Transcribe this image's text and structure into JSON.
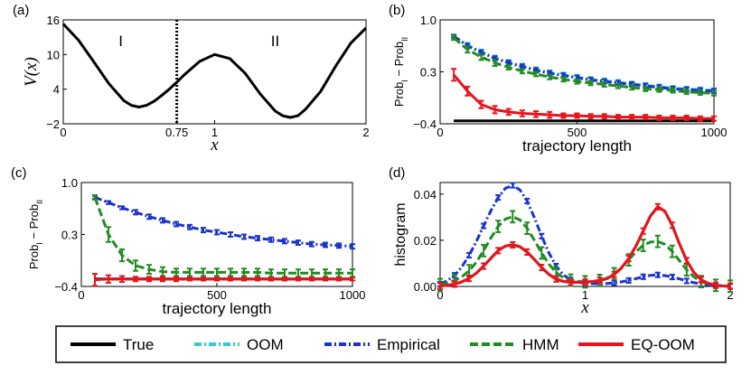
{
  "chart_data": [
    {
      "id": "a",
      "type": "line",
      "panel_label": "(a)",
      "xlabel": "x",
      "ylabel": "V(x)",
      "xlim": [
        0,
        2
      ],
      "ylim": [
        -2,
        16
      ],
      "xticks": [
        {
          "v": 0,
          "label": "0"
        },
        {
          "v": 0.75,
          "label": "0.75"
        },
        {
          "v": 1,
          "label": "1"
        },
        {
          "v": 2,
          "label": "2"
        }
      ],
      "yticks": [
        {
          "v": -2,
          "label": "−2"
        },
        {
          "v": 4,
          "label": "4"
        },
        {
          "v": 10,
          "label": "10"
        },
        {
          "v": 16,
          "label": "16"
        }
      ],
      "divider_x": 0.75,
      "region_labels": [
        {
          "text": "I",
          "x": 0.38,
          "y": 11.5
        },
        {
          "text": "II",
          "x": 1.4,
          "y": 11.5
        }
      ],
      "series": [
        {
          "name": "potential",
          "color": "#000000",
          "x": [
            0,
            0.1,
            0.2,
            0.3,
            0.4,
            0.45,
            0.5,
            0.55,
            0.6,
            0.65,
            0.7,
            0.75,
            0.8,
            0.9,
            1.0,
            1.1,
            1.2,
            1.3,
            1.4,
            1.45,
            1.5,
            1.55,
            1.6,
            1.7,
            1.8,
            1.9,
            2.0
          ],
          "y": [
            15.3,
            12.5,
            8.8,
            5.0,
            2.0,
            1.2,
            0.9,
            1.2,
            1.9,
            2.9,
            4.0,
            5.2,
            6.5,
            8.8,
            10.0,
            9.3,
            6.8,
            3.2,
            0.2,
            -0.6,
            -0.9,
            -0.6,
            0.5,
            3.6,
            8.0,
            12.0,
            14.6
          ]
        }
      ]
    },
    {
      "id": "b",
      "type": "line",
      "panel_label": "(b)",
      "xlabel": "trajectory length",
      "ylabel_main": "Prob",
      "ylabel_sub1": "I",
      "ylabel_sub2": "II",
      "ylabel_sep": " − ",
      "xlim": [
        0,
        1000
      ],
      "ylim": [
        -0.4,
        1.0
      ],
      "xticks": [
        {
          "v": 0,
          "label": "0"
        },
        {
          "v": 500,
          "label": "500"
        },
        {
          "v": 1000,
          "label": "1000"
        }
      ],
      "yticks": [
        {
          "v": -0.4,
          "label": "−0.4"
        },
        {
          "v": 0.3,
          "label": "0.3"
        },
        {
          "v": 1.0,
          "label": "1.0"
        }
      ],
      "x": [
        50,
        100,
        150,
        200,
        250,
        300,
        350,
        400,
        450,
        500,
        550,
        600,
        650,
        700,
        750,
        800,
        850,
        900,
        950,
        1000
      ],
      "series": [
        {
          "name": "True",
          "color": "#000000",
          "style": "solid",
          "values": [
            -0.36,
            -0.36,
            -0.36,
            -0.36,
            -0.36,
            -0.36,
            -0.36,
            -0.36,
            -0.36,
            -0.36,
            -0.36,
            -0.36,
            -0.36,
            -0.36,
            -0.36,
            -0.36,
            -0.36,
            -0.36,
            -0.36,
            -0.36
          ]
        },
        {
          "name": "OOM",
          "color": "#33cccc",
          "style": "dashdot",
          "values": [
            0.78,
            0.66,
            0.57,
            0.49,
            0.43,
            0.38,
            0.33,
            0.29,
            0.26,
            0.23,
            0.2,
            0.18,
            0.16,
            0.14,
            0.12,
            0.1,
            0.08,
            0.07,
            0.06,
            0.05
          ],
          "err": [
            0.02,
            0.03,
            0.03,
            0.03,
            0.03,
            0.03,
            0.03,
            0.03,
            0.03,
            0.03,
            0.03,
            0.03,
            0.03,
            0.03,
            0.03,
            0.03,
            0.03,
            0.03,
            0.03,
            0.03
          ]
        },
        {
          "name": "Empirical",
          "color": "#1a33cc",
          "style": "dashdot",
          "values": [
            0.78,
            0.65,
            0.56,
            0.48,
            0.42,
            0.37,
            0.32,
            0.28,
            0.25,
            0.22,
            0.19,
            0.17,
            0.15,
            0.13,
            0.11,
            0.09,
            0.07,
            0.06,
            0.05,
            0.04
          ],
          "err": [
            0.02,
            0.03,
            0.03,
            0.03,
            0.03,
            0.03,
            0.03,
            0.03,
            0.03,
            0.03,
            0.03,
            0.03,
            0.03,
            0.03,
            0.03,
            0.03,
            0.03,
            0.03,
            0.03,
            0.03
          ]
        },
        {
          "name": "HMM",
          "color": "#228b22",
          "style": "dashed",
          "values": [
            0.76,
            0.6,
            0.5,
            0.42,
            0.36,
            0.31,
            0.27,
            0.23,
            0.2,
            0.17,
            0.15,
            0.13,
            0.11,
            0.09,
            0.07,
            0.06,
            0.05,
            0.03,
            0.02,
            0.01
          ],
          "err": [
            0.03,
            0.04,
            0.04,
            0.04,
            0.03,
            0.03,
            0.03,
            0.03,
            0.03,
            0.03,
            0.03,
            0.03,
            0.03,
            0.03,
            0.03,
            0.03,
            0.03,
            0.03,
            0.03,
            0.03
          ]
        },
        {
          "name": "EQ-OOM",
          "color": "#e8141b",
          "style": "solid",
          "values": [
            0.26,
            0.04,
            -0.14,
            -0.21,
            -0.24,
            -0.26,
            -0.27,
            -0.28,
            -0.29,
            -0.29,
            -0.3,
            -0.3,
            -0.31,
            -0.31,
            -0.31,
            -0.32,
            -0.32,
            -0.32,
            -0.33,
            -0.33
          ],
          "err": [
            0.08,
            0.06,
            0.05,
            0.05,
            0.04,
            0.04,
            0.04,
            0.04,
            0.03,
            0.03,
            0.03,
            0.03,
            0.03,
            0.03,
            0.03,
            0.03,
            0.03,
            0.03,
            0.03,
            0.03
          ]
        }
      ]
    },
    {
      "id": "c",
      "type": "line",
      "panel_label": "(c)",
      "xlabel": "trajectory length",
      "ylabel_main": "Prob",
      "ylabel_sub1": "I",
      "ylabel_sub2": "II",
      "ylabel_sep": " − ",
      "xlim": [
        0,
        1000
      ],
      "ylim": [
        -0.4,
        1.0
      ],
      "xticks": [
        {
          "v": 0,
          "label": "0"
        },
        {
          "v": 500,
          "label": "500"
        },
        {
          "v": 1000,
          "label": "1000"
        }
      ],
      "yticks": [
        {
          "v": -0.4,
          "label": "−0.4"
        },
        {
          "v": 0.3,
          "label": "0.3"
        },
        {
          "v": 1.0,
          "label": "1.0"
        }
      ],
      "x": [
        50,
        100,
        150,
        200,
        250,
        300,
        350,
        400,
        450,
        500,
        550,
        600,
        650,
        700,
        750,
        800,
        850,
        900,
        950,
        1000
      ],
      "series": [
        {
          "name": "True",
          "color": "#000000",
          "style": "solid",
          "values": [
            -0.3,
            -0.3,
            -0.3,
            -0.3,
            -0.3,
            -0.3,
            -0.3,
            -0.3,
            -0.3,
            -0.3,
            -0.3,
            -0.3,
            -0.3,
            -0.3,
            -0.3,
            -0.3,
            -0.3,
            -0.3,
            -0.3,
            -0.3
          ]
        },
        {
          "name": "Empirical",
          "color": "#1a33cc",
          "style": "dashdot",
          "values": [
            0.8,
            0.73,
            0.66,
            0.6,
            0.54,
            0.49,
            0.44,
            0.4,
            0.36,
            0.33,
            0.3,
            0.27,
            0.25,
            0.23,
            0.21,
            0.19,
            0.17,
            0.16,
            0.15,
            0.14
          ],
          "err": [
            0.02,
            0.02,
            0.02,
            0.03,
            0.03,
            0.03,
            0.03,
            0.03,
            0.03,
            0.03,
            0.03,
            0.03,
            0.03,
            0.03,
            0.03,
            0.03,
            0.03,
            0.03,
            0.03,
            0.03
          ]
        },
        {
          "name": "HMM",
          "color": "#228b22",
          "style": "dashed",
          "values": [
            0.8,
            0.3,
            0.02,
            -0.12,
            -0.17,
            -0.2,
            -0.21,
            -0.21,
            -0.21,
            -0.21,
            -0.21,
            -0.21,
            -0.21,
            -0.22,
            -0.22,
            -0.22,
            -0.22,
            -0.22,
            -0.22,
            -0.22
          ],
          "err": [
            0.03,
            0.1,
            0.08,
            0.07,
            0.06,
            0.06,
            0.05,
            0.05,
            0.05,
            0.05,
            0.05,
            0.05,
            0.05,
            0.05,
            0.05,
            0.05,
            0.05,
            0.05,
            0.05,
            0.05
          ]
        },
        {
          "name": "EQ-OOM",
          "color": "#e8141b",
          "style": "solid",
          "values": [
            -0.31,
            -0.3,
            -0.3,
            -0.3,
            -0.3,
            -0.3,
            -0.3,
            -0.3,
            -0.3,
            -0.3,
            -0.3,
            -0.3,
            -0.3,
            -0.3,
            -0.3,
            -0.3,
            -0.3,
            -0.3,
            -0.3,
            -0.3
          ],
          "err": [
            0.08,
            0.05,
            0.04,
            0.03,
            0.03,
            0.03,
            0.03,
            0.02,
            0.02,
            0.02,
            0.02,
            0.02,
            0.02,
            0.02,
            0.02,
            0.02,
            0.02,
            0.02,
            0.02,
            0.02
          ]
        }
      ]
    },
    {
      "id": "d",
      "type": "line",
      "panel_label": "(d)",
      "xlabel": "x",
      "ylabel": "histogram",
      "xlim": [
        0,
        2
      ],
      "ylim": [
        0,
        0.045
      ],
      "xticks": [
        {
          "v": 0,
          "label": "0"
        },
        {
          "v": 1,
          "label": "1"
        },
        {
          "v": 2,
          "label": "2"
        }
      ],
      "yticks": [
        {
          "v": 0,
          "label": "0.00"
        },
        {
          "v": 0.02,
          "label": "0.02"
        },
        {
          "v": 0.04,
          "label": "0.04"
        }
      ],
      "x": [
        0,
        0.05,
        0.1,
        0.15,
        0.2,
        0.25,
        0.3,
        0.35,
        0.4,
        0.45,
        0.5,
        0.55,
        0.6,
        0.65,
        0.7,
        0.75,
        0.8,
        0.85,
        0.9,
        0.95,
        1.0,
        1.05,
        1.1,
        1.15,
        1.2,
        1.25,
        1.3,
        1.35,
        1.4,
        1.45,
        1.5,
        1.55,
        1.6,
        1.65,
        1.7,
        1.75,
        1.8,
        1.85,
        1.9,
        1.95,
        2.0
      ],
      "series": [
        {
          "name": "True",
          "color": "#000000",
          "style": "solid",
          "values": [
            0.0002,
            0.0005,
            0.001,
            0.002,
            0.0035,
            0.0058,
            0.0088,
            0.0122,
            0.0155,
            0.0175,
            0.018,
            0.0172,
            0.0149,
            0.0117,
            0.0082,
            0.0052,
            0.0032,
            0.0022,
            0.0018,
            0.0018,
            0.0019,
            0.0021,
            0.0026,
            0.0034,
            0.0052,
            0.008,
            0.0121,
            0.0175,
            0.024,
            0.0305,
            0.0345,
            0.0325,
            0.0265,
            0.0185,
            0.0112,
            0.006,
            0.0029,
            0.0013,
            0.0005,
            0.0002,
            0.0001
          ]
        },
        {
          "name": "Empirical",
          "color": "#1a33cc",
          "style": "dashdot",
          "values": [
            0.001,
            0.0025,
            0.0048,
            0.0085,
            0.0135,
            0.0195,
            0.0262,
            0.0328,
            0.0385,
            0.0425,
            0.0438,
            0.0418,
            0.037,
            0.0298,
            0.0218,
            0.0145,
            0.0088,
            0.005,
            0.0028,
            0.0018,
            0.0014,
            0.0012,
            0.0012,
            0.0013,
            0.0016,
            0.002,
            0.0026,
            0.0034,
            0.0042,
            0.0048,
            0.005,
            0.0047,
            0.0041,
            0.0033,
            0.0024,
            0.0016,
            0.001,
            0.0006,
            0.0004,
            0.0002,
            0.0001
          ],
          "err_every": 2,
          "err": 0.001
        },
        {
          "name": "HMM",
          "color": "#228b22",
          "style": "dashed",
          "values": [
            0.0008,
            0.0015,
            0.0025,
            0.0042,
            0.0068,
            0.0105,
            0.0155,
            0.021,
            0.026,
            0.0292,
            0.0302,
            0.0288,
            0.0252,
            0.02,
            0.0145,
            0.0097,
            0.006,
            0.0038,
            0.0027,
            0.0022,
            0.002,
            0.0021,
            0.0026,
            0.0036,
            0.0055,
            0.0082,
            0.0115,
            0.015,
            0.0178,
            0.0192,
            0.0195,
            0.0182,
            0.0152,
            0.0112,
            0.0072,
            0.0041,
            0.0021,
            0.001,
            0.0005,
            0.0002,
            0.0001
          ],
          "err_every": 2,
          "err": 0.0025
        },
        {
          "name": "EQ-OOM",
          "color": "#e8141b",
          "style": "solid",
          "values": [
            0.0002,
            0.0005,
            0.001,
            0.002,
            0.0035,
            0.0058,
            0.0088,
            0.0122,
            0.0155,
            0.0175,
            0.018,
            0.0172,
            0.0149,
            0.0117,
            0.0082,
            0.0052,
            0.0032,
            0.0022,
            0.0018,
            0.0018,
            0.0019,
            0.0021,
            0.0026,
            0.0034,
            0.0052,
            0.008,
            0.0121,
            0.0175,
            0.024,
            0.0305,
            0.0345,
            0.0325,
            0.0265,
            0.0185,
            0.0112,
            0.006,
            0.0029,
            0.0013,
            0.0005,
            0.0002,
            0.0001
          ],
          "err_every": 2,
          "err": 0.0012
        }
      ]
    }
  ],
  "legend": {
    "items": [
      {
        "name": "True",
        "color": "#000000",
        "style": "solid"
      },
      {
        "name": "OOM",
        "color": "#33cccc",
        "style": "dashdot"
      },
      {
        "name": "Empirical",
        "color": "#1a33cc",
        "style": "dashdot"
      },
      {
        "name": "HMM",
        "color": "#228b22",
        "style": "dashed"
      },
      {
        "name": "EQ-OOM",
        "color": "#e8141b",
        "style": "solid"
      }
    ]
  }
}
